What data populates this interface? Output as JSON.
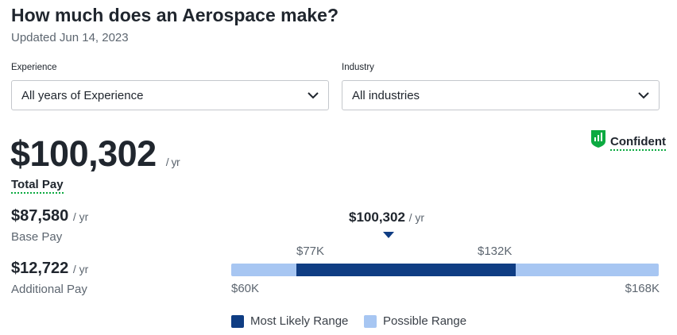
{
  "header": {
    "title": "How much does an Aerospace make?",
    "updated": "Updated Jun 14, 2023"
  },
  "filters": {
    "experience": {
      "label": "Experience",
      "value": "All years of Experience"
    },
    "industry": {
      "label": "Industry",
      "value": "All industries"
    }
  },
  "pay": {
    "total": "$100,302",
    "total_unit": "/ yr",
    "total_label": "Total Pay",
    "base": "$87,580",
    "base_unit": "/ yr",
    "base_label": "Base Pay",
    "additional": "$12,722",
    "additional_unit": "/ yr",
    "additional_label": "Additional Pay"
  },
  "confidence": {
    "label": "Confident",
    "icon": "bar-chart-shield-icon",
    "color": "#0caa41"
  },
  "range": {
    "median": "$100,302",
    "median_unit": "/ yr",
    "likely_low": "$77K",
    "likely_high": "$132K",
    "possible_low": "$60K",
    "possible_high": "$168K",
    "colors": {
      "likely": "#0f3d83",
      "possible": "#a7c6f2"
    }
  },
  "legend": {
    "likely": "Most Likely Range",
    "possible": "Possible Range"
  }
}
